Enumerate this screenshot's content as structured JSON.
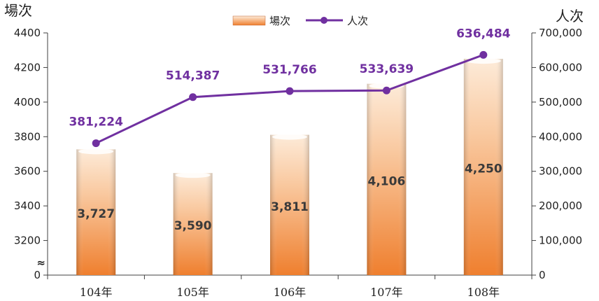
{
  "chart_data": {
    "type": "bar",
    "categories": [
      "104年",
      "105年",
      "106年",
      "107年",
      "108年"
    ],
    "series": [
      {
        "name": "場次",
        "type": "bar",
        "axis": "left",
        "values": [
          3727,
          3590,
          3811,
          4106,
          4250
        ],
        "labels": [
          "3,727",
          "3,590",
          "3,811",
          "4,106",
          "4,250"
        ]
      },
      {
        "name": "人次",
        "type": "line",
        "axis": "right",
        "values": [
          381224,
          514387,
          531766,
          533639,
          636484
        ],
        "labels": [
          "381,224",
          "514,387",
          "531,766",
          "533,639",
          "636,484"
        ]
      }
    ],
    "left_axis": {
      "title": "場次",
      "range": [
        3000,
        4400
      ],
      "ticks": [
        "4400",
        "4200",
        "4000",
        "3800",
        "3600",
        "3400",
        "3200",
        "0"
      ],
      "tick_values": [
        4400,
        4200,
        4000,
        3800,
        3600,
        3400,
        3200,
        3000
      ],
      "axis_break": true
    },
    "right_axis": {
      "title": "人次",
      "range": [
        0,
        700000
      ],
      "ticks": [
        "700,000",
        "600,000",
        "500,000",
        "400,000",
        "300,000",
        "200,000",
        "100,000",
        "0"
      ],
      "tick_values": [
        700000,
        600000,
        500000,
        400000,
        300000,
        200000,
        100000,
        0
      ]
    },
    "legend": {
      "position": "top-center",
      "items": [
        "場次",
        "人次"
      ]
    },
    "colors": {
      "bar_light": "#fbe3cc",
      "bar_dark": "#f08a3c",
      "line": "#7030a0",
      "axis": "#404040"
    },
    "grid": false
  }
}
